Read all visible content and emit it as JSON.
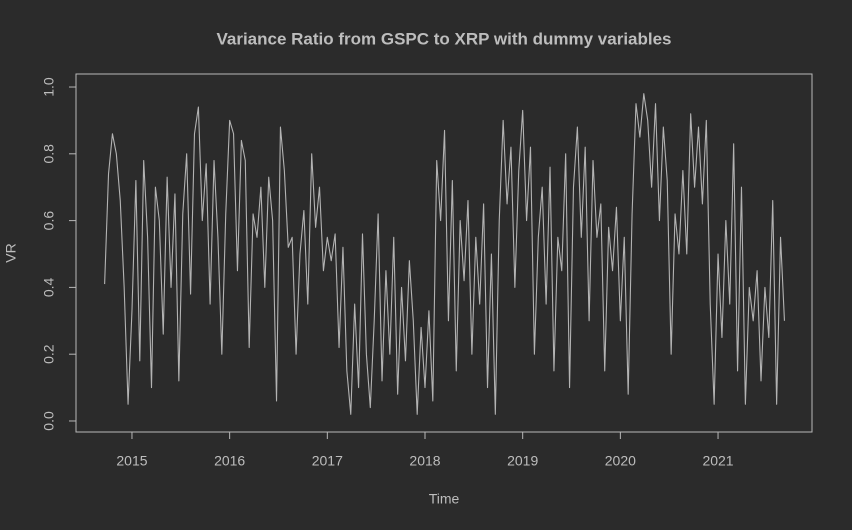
{
  "chart_data": {
    "type": "line",
    "title": "Variance Ratio from GSPC to XRP with dummy variables",
    "x_label": "Time",
    "y_label": "VR",
    "x": [
      2014.72,
      2014.76,
      2014.8,
      2014.84,
      2014.88,
      2014.92,
      2014.96,
      2015,
      2015.04,
      2015.08,
      2015.12,
      2015.16,
      2015.2,
      2015.24,
      2015.28,
      2015.32,
      2015.36,
      2015.4,
      2015.44,
      2015.48,
      2015.52,
      2015.56,
      2015.6,
      2015.64,
      2015.68,
      2015.72,
      2015.76,
      2015.8,
      2015.84,
      2015.88,
      2015.92,
      2015.96,
      2016,
      2016.04,
      2016.08,
      2016.12,
      2016.16,
      2016.2,
      2016.24,
      2016.28,
      2016.32,
      2016.36,
      2016.4,
      2016.44,
      2016.48,
      2016.52,
      2016.56,
      2016.6,
      2016.64,
      2016.68,
      2016.72,
      2016.76,
      2016.8,
      2016.84,
      2016.88,
      2016.92,
      2016.96,
      2017,
      2017.04,
      2017.08,
      2017.12,
      2017.16,
      2017.2,
      2017.24,
      2017.28,
      2017.32,
      2017.36,
      2017.4,
      2017.44,
      2017.48,
      2017.52,
      2017.56,
      2017.6,
      2017.64,
      2017.68,
      2017.72,
      2017.76,
      2017.8,
      2017.84,
      2017.88,
      2017.92,
      2017.96,
      2018,
      2018.04,
      2018.08,
      2018.12,
      2018.16,
      2018.2,
      2018.24,
      2018.28,
      2018.32,
      2018.36,
      2018.4,
      2018.44,
      2018.48,
      2018.52,
      2018.56,
      2018.6,
      2018.64,
      2018.68,
      2018.72,
      2018.76,
      2018.8,
      2018.84,
      2018.88,
      2018.92,
      2018.96,
      2019,
      2019.04,
      2019.08,
      2019.12,
      2019.16,
      2019.2,
      2019.24,
      2019.28,
      2019.32,
      2019.36,
      2019.4,
      2019.44,
      2019.48,
      2019.52,
      2019.56,
      2019.6,
      2019.64,
      2019.68,
      2019.72,
      2019.76,
      2019.8,
      2019.84,
      2019.88,
      2019.92,
      2019.96,
      2020,
      2020.04,
      2020.08,
      2020.12,
      2020.16,
      2020.2,
      2020.24,
      2020.28,
      2020.32,
      2020.36,
      2020.4,
      2020.44,
      2020.48,
      2020.52,
      2020.56,
      2020.6,
      2020.64,
      2020.68,
      2020.72,
      2020.76,
      2020.8,
      2020.84,
      2020.88,
      2020.92,
      2020.96,
      2021,
      2021.04,
      2021.08,
      2021.12,
      2021.16,
      2021.2,
      2021.24,
      2021.28,
      2021.32,
      2021.36,
      2021.4,
      2021.44,
      2021.48,
      2021.52,
      2021.56,
      2021.6,
      2021.64,
      2021.68
    ],
    "values": [
      0.41,
      0.74,
      0.86,
      0.8,
      0.66,
      0.4,
      0.05,
      0.33,
      0.72,
      0.18,
      0.78,
      0.55,
      0.1,
      0.7,
      0.6,
      0.26,
      0.73,
      0.4,
      0.68,
      0.12,
      0.62,
      0.8,
      0.38,
      0.86,
      0.94,
      0.6,
      0.77,
      0.35,
      0.78,
      0.55,
      0.2,
      0.62,
      0.9,
      0.86,
      0.45,
      0.84,
      0.78,
      0.22,
      0.62,
      0.55,
      0.7,
      0.4,
      0.73,
      0.6,
      0.06,
      0.88,
      0.75,
      0.52,
      0.55,
      0.2,
      0.5,
      0.63,
      0.35,
      0.8,
      0.58,
      0.7,
      0.45,
      0.55,
      0.48,
      0.56,
      0.22,
      0.52,
      0.15,
      0.02,
      0.35,
      0.1,
      0.56,
      0.2,
      0.04,
      0.3,
      0.62,
      0.12,
      0.45,
      0.2,
      0.55,
      0.08,
      0.4,
      0.18,
      0.48,
      0.3,
      0.02,
      0.28,
      0.1,
      0.33,
      0.06,
      0.78,
      0.6,
      0.87,
      0.3,
      0.72,
      0.15,
      0.6,
      0.42,
      0.66,
      0.2,
      0.55,
      0.35,
      0.65,
      0.1,
      0.5,
      0.02,
      0.6,
      0.9,
      0.65,
      0.82,
      0.4,
      0.75,
      0.93,
      0.6,
      0.82,
      0.2,
      0.55,
      0.7,
      0.35,
      0.76,
      0.15,
      0.55,
      0.45,
      0.8,
      0.1,
      0.7,
      0.88,
      0.55,
      0.82,
      0.3,
      0.78,
      0.55,
      0.65,
      0.15,
      0.58,
      0.45,
      0.64,
      0.3,
      0.55,
      0.08,
      0.62,
      0.95,
      0.85,
      0.98,
      0.9,
      0.7,
      0.95,
      0.6,
      0.88,
      0.72,
      0.2,
      0.62,
      0.5,
      0.75,
      0.5,
      0.92,
      0.7,
      0.88,
      0.65,
      0.9,
      0.35,
      0.05,
      0.5,
      0.25,
      0.6,
      0.35,
      0.83,
      0.15,
      0.7,
      0.05,
      0.4,
      0.3,
      0.45,
      0.12,
      0.4,
      0.25,
      0.66,
      0.05,
      0.55,
      0.3
    ],
    "color": "#b3b3b3",
    "xlim": [
      2014.427,
      2021.962
    ],
    "xticks": [
      2015,
      2016,
      2017,
      2018,
      2019,
      2020,
      2021
    ],
    "ylim": [
      -0.033,
      1.039
    ],
    "yticks": [
      {
        "value": 0,
        "label": "0.0"
      },
      0.2,
      0.4,
      0.6,
      0.8,
      {
        "value": 1,
        "label": "1.0"
      }
    ]
  }
}
